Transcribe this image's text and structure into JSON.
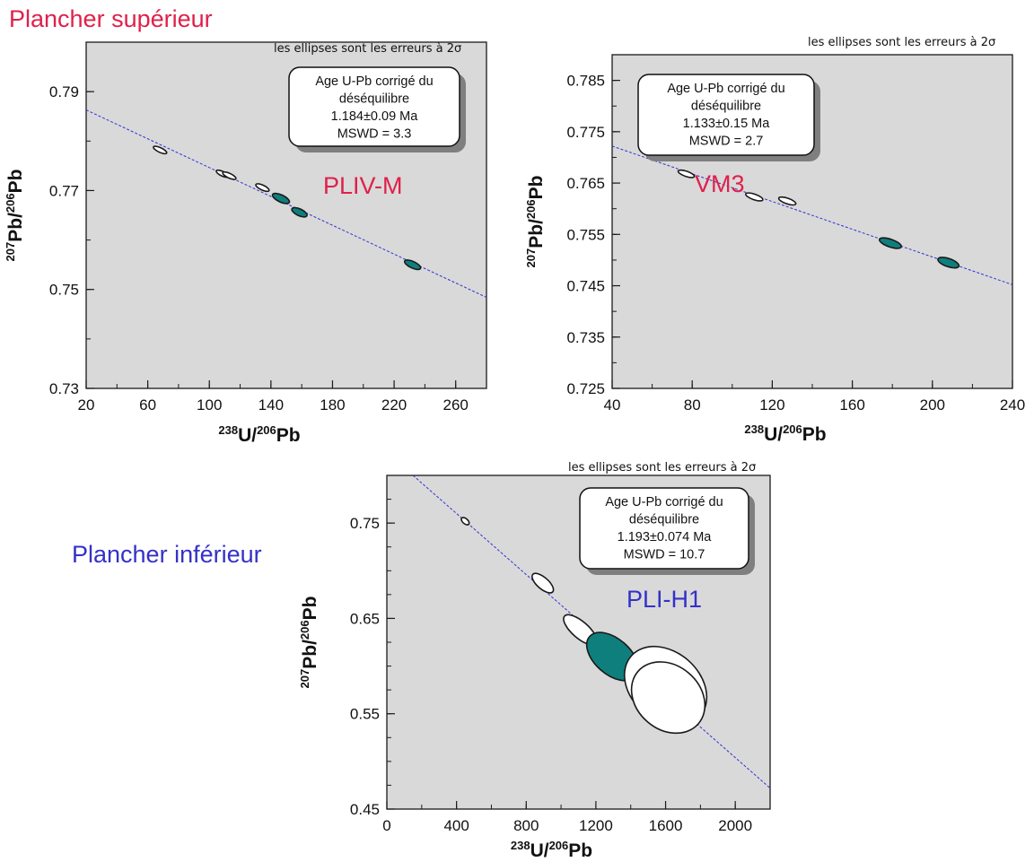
{
  "colors": {
    "title_sup": "#e0204a",
    "title_inf": "#3431c8",
    "plot_bg": "#d9d9d9",
    "regression": "#2f33d6",
    "ellipse_fill": "#0e7f7d",
    "ellipse_stroke": "#1a1a1a",
    "box_shadow": "#7f7f7f"
  },
  "section_titles": {
    "sup": "Plancher supérieur",
    "inf": "Plancher inférieur"
  },
  "chart_data": [
    {
      "type": "scatter",
      "subtype": "tera-wasserburg concordia with error ellipses",
      "sample": "PLIV-M",
      "sample_color": "#e0204a",
      "note": "les ellipses sont les erreurs à 2σ",
      "box": [
        "Age U-Pb corrigé du",
        "déséquilibre",
        "1.184±0.09 Ma",
        "MSWD = 3.3"
      ],
      "xlabel": {
        "sup1": "238",
        "base1": "U/",
        "sup2": "206",
        "base2": "Pb"
      },
      "ylabel": {
        "sup1": "207",
        "base1": "Pb/",
        "sup2": "206",
        "base2": "Pb"
      },
      "xlim": [
        20,
        280
      ],
      "ylim": [
        0.73,
        0.8
      ],
      "xticks": [
        "20",
        "60",
        "100",
        "140",
        "180",
        "220",
        "260"
      ],
      "yticks": [
        "0.73",
        "0.75",
        "0.77",
        "0.79"
      ],
      "xtick_values": [
        20,
        60,
        100,
        140,
        180,
        220,
        260
      ],
      "ytick_values": [
        0.73,
        0.75,
        0.77,
        0.79
      ],
      "x_minor_step": 20,
      "y_minor_step": 0.01,
      "regression": {
        "x": [
          20,
          280
        ],
        "y": [
          0.7863,
          0.7484
        ]
      },
      "points": [
        {
          "x": 68,
          "y": 0.7782,
          "sx": 0.7,
          "sy": 0.0011,
          "fill": false
        },
        {
          "x": 108.5,
          "y": 0.7734,
          "sx": 0.7,
          "sy": 0.001,
          "fill": false
        },
        {
          "x": 113,
          "y": 0.773,
          "sx": 0.7,
          "sy": 0.0011,
          "fill": false
        },
        {
          "x": 134.5,
          "y": 0.7706,
          "sx": 0.8,
          "sy": 0.0011,
          "fill": false
        },
        {
          "x": 146.5,
          "y": 0.7684,
          "sx": 1.6,
          "sy": 0.0015,
          "fill": true
        },
        {
          "x": 158.5,
          "y": 0.7656,
          "sx": 1.5,
          "sy": 0.0013,
          "fill": true
        },
        {
          "x": 232,
          "y": 0.755,
          "sx": 1.4,
          "sy": 0.0014,
          "fill": true
        }
      ]
    },
    {
      "type": "scatter",
      "subtype": "tera-wasserburg concordia with error ellipses",
      "sample": "VM3",
      "sample_color": "#e0204a",
      "note": "les ellipses sont les erreurs à 2σ",
      "box": [
        "Age U-Pb corrigé du",
        "déséquilibre",
        "1.133±0.15 Ma",
        "MSWD = 2.7"
      ],
      "xlabel": {
        "sup1": "238",
        "base1": "U/",
        "sup2": "206",
        "base2": "Pb"
      },
      "ylabel": {
        "sup1": "207",
        "base1": "Pb/",
        "sup2": "206",
        "base2": "Pb"
      },
      "xlim": [
        40,
        240
      ],
      "ylim": [
        0.725,
        0.79
      ],
      "xticks": [
        "40",
        "80",
        "120",
        "160",
        "200",
        "240"
      ],
      "yticks": [
        "0.725",
        "0.735",
        "0.745",
        "0.755",
        "0.765",
        "0.775",
        "0.785"
      ],
      "xtick_values": [
        40,
        80,
        120,
        160,
        200,
        240
      ],
      "ytick_values": [
        0.725,
        0.735,
        0.745,
        0.755,
        0.765,
        0.775,
        0.785
      ],
      "x_minor_step": 20,
      "y_minor_step": 0.005,
      "regression": {
        "x": [
          40,
          240
        ],
        "y": [
          0.7722,
          0.7452
        ]
      },
      "points": [
        {
          "x": 77,
          "y": 0.7668,
          "sx": 0.7,
          "sy": 0.0013,
          "fill": false
        },
        {
          "x": 111,
          "y": 0.7623,
          "sx": 0.8,
          "sy": 0.0014,
          "fill": false
        },
        {
          "x": 127.5,
          "y": 0.7615,
          "sx": 0.8,
          "sy": 0.0014,
          "fill": false
        },
        {
          "x": 179,
          "y": 0.7533,
          "sx": 1.4,
          "sy": 0.0019,
          "fill": true
        },
        {
          "x": 208,
          "y": 0.7495,
          "sx": 1.5,
          "sy": 0.0018,
          "fill": true
        }
      ]
    },
    {
      "type": "scatter",
      "subtype": "tera-wasserburg concordia with error ellipses",
      "sample": "PLI-H1",
      "sample_color": "#3431c8",
      "note": "les ellipses sont les erreurs à 2σ",
      "box": [
        "Age U-Pb corrigé du",
        "déséquilibre",
        "1.193±0.074 Ma",
        "MSWD = 10.7"
      ],
      "xlabel": {
        "sup1": "238",
        "base1": "U/",
        "sup2": "206",
        "base2": "Pb"
      },
      "ylabel": {
        "sup1": "207",
        "base1": "Pb/",
        "sup2": "206",
        "base2": "Pb"
      },
      "xlim": [
        0,
        2200
      ],
      "ylim": [
        0.45,
        0.8
      ],
      "xticks": [
        "0",
        "400",
        "800",
        "1200",
        "1600",
        "2000"
      ],
      "yticks": [
        "0.45",
        "0.55",
        "0.65",
        "0.75"
      ],
      "xtick_values": [
        0,
        400,
        800,
        1200,
        1600,
        2000
      ],
      "ytick_values": [
        0.45,
        0.55,
        0.65,
        0.75
      ],
      "x_minor_step": 200,
      "y_minor_step": 0.025,
      "regression": {
        "x": [
          150,
          2200
        ],
        "y": [
          0.8,
          0.472
        ]
      },
      "points": [
        {
          "x": 450,
          "y": 0.752,
          "sx": 8,
          "sy": 0.003,
          "fill": false
        },
        {
          "x": 895,
          "y": 0.687,
          "sx": 28,
          "sy": 0.012,
          "fill": false
        },
        {
          "x": 1110,
          "y": 0.638,
          "sx": 44,
          "sy": 0.02,
          "fill": false
        },
        {
          "x": 1295,
          "y": 0.61,
          "sx": 105,
          "sy": 0.03,
          "fill": true
        },
        {
          "x": 1600,
          "y": 0.579,
          "sx": 210,
          "sy": 0.046,
          "fill": false
        },
        {
          "x": 1615,
          "y": 0.567,
          "sx": 195,
          "sy": 0.04,
          "fill": false
        }
      ]
    }
  ]
}
